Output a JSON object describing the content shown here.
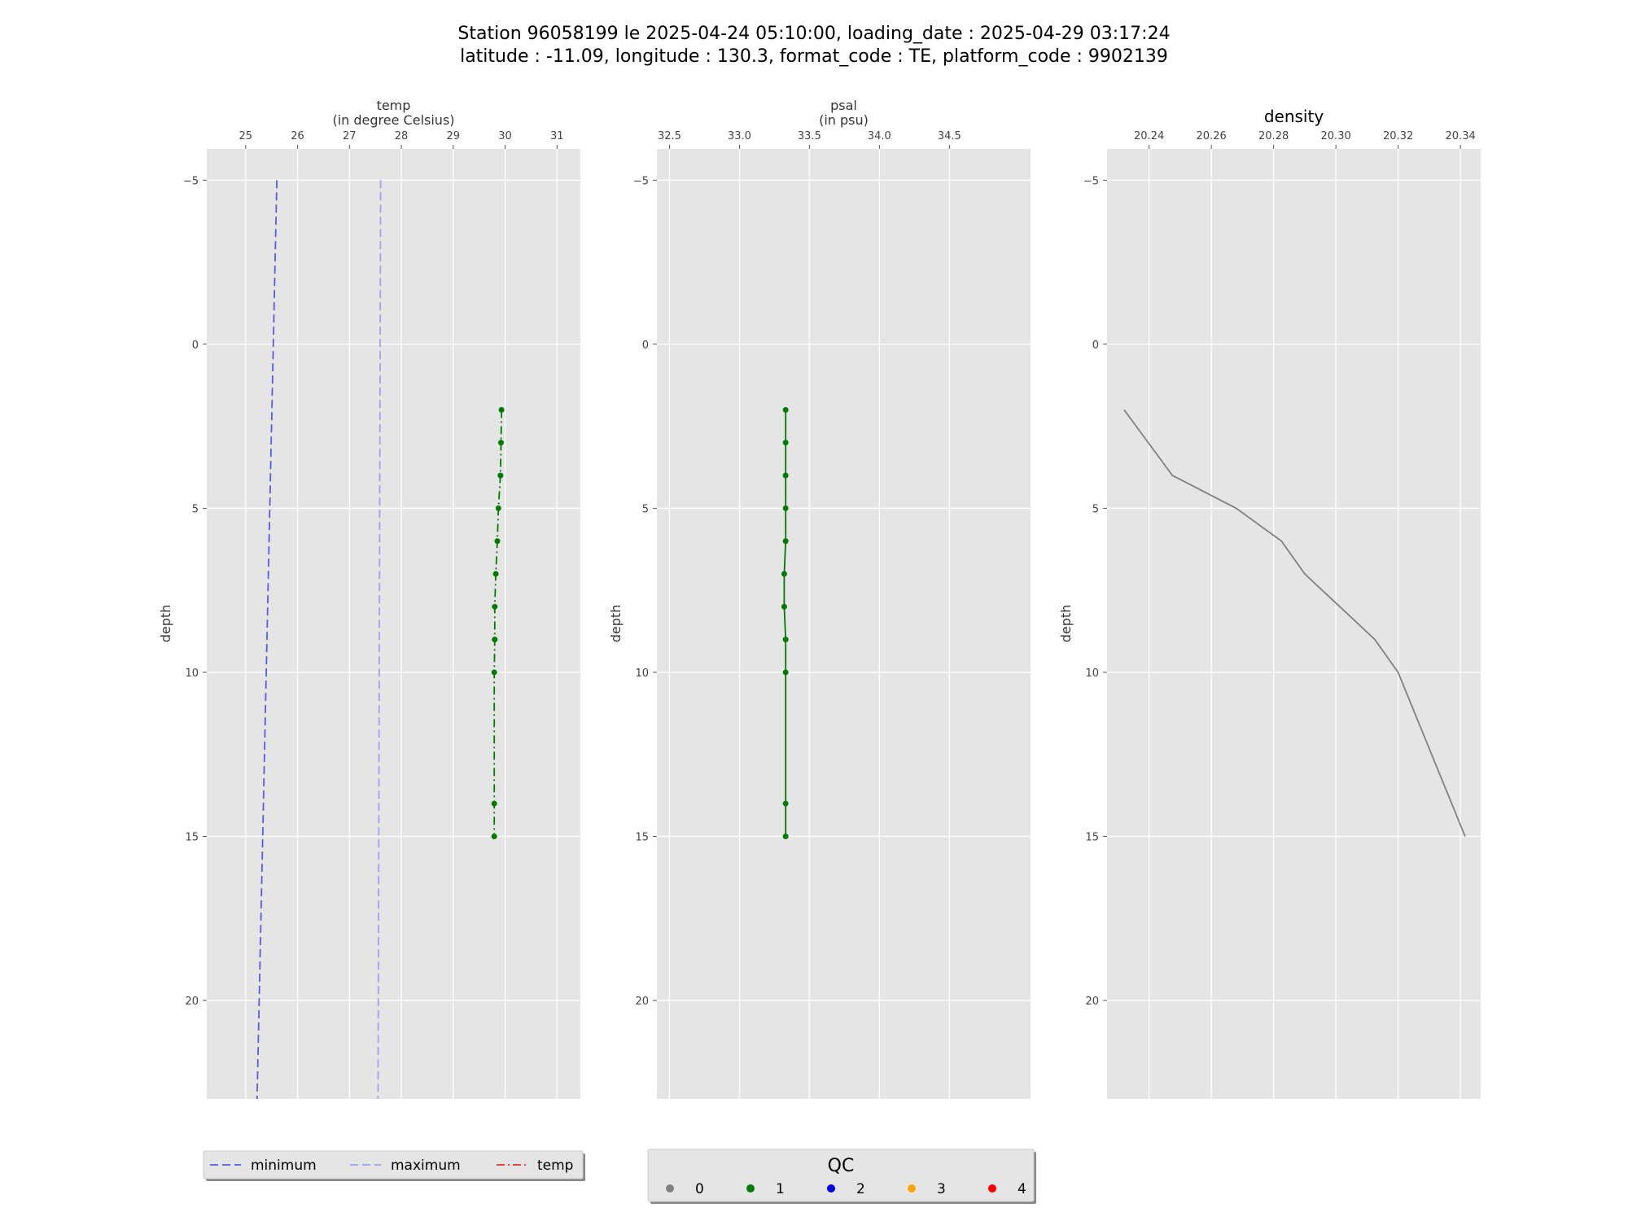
{
  "figure": {
    "title_line1": "Station 96058199 le 2025-04-24 05:10:00, loading_date : 2025-04-29 03:17:24",
    "title_line2": "latitude : -11.09, longitude : 130.3, format_code : TE, platform_code : 9902139"
  },
  "colors": {
    "panel_bg": "#e5e5e5",
    "grid": "#ffffff",
    "minimum": "#5a5ae6",
    "maximum": "#a0a0f0",
    "temp_legend": "#e03030",
    "qc_good": "#007a00",
    "density_line": "#808080"
  },
  "chart_data": [
    {
      "type": "line",
      "panel": "temp",
      "xlabel_line1": "temp",
      "xlabel_line2": "(in degree Celsius)",
      "ylabel": "depth",
      "xlim": [
        24.25,
        31.45
      ],
      "ylim": [
        23,
        -5.95
      ],
      "y_inverted": true,
      "xticks": [
        25,
        26,
        27,
        28,
        29,
        30,
        31
      ],
      "yticks": [
        -5,
        0,
        5,
        10,
        15,
        20
      ],
      "x_axis_position": "top",
      "grid": true,
      "series": [
        {
          "name": "minimum",
          "style": "dashed",
          "color": "#5a5ae6",
          "x": [
            25.6,
            25.22
          ],
          "y": [
            -5,
            23
          ]
        },
        {
          "name": "maximum",
          "style": "dashed",
          "color": "#a0a0f0",
          "x": [
            27.6,
            27.55
          ],
          "y": [
            -5,
            23
          ]
        },
        {
          "name": "temp",
          "style": "dashdot",
          "color": "#007a00",
          "qc": 1,
          "x": [
            29.93,
            29.92,
            29.91,
            29.87,
            29.85,
            29.82,
            29.8,
            29.8,
            29.79,
            29.79,
            29.79
          ],
          "y": [
            2,
            3,
            4,
            5,
            6,
            7,
            8,
            9,
            10,
            14,
            15
          ]
        }
      ]
    },
    {
      "type": "line",
      "panel": "psal",
      "xlabel_line1": "psal",
      "xlabel_line2": "(in psu)",
      "ylabel": "depth",
      "xlim": [
        32.41,
        35.08
      ],
      "ylim": [
        23,
        -5.95
      ],
      "y_inverted": true,
      "xticks": [
        32.5,
        33.0,
        33.5,
        34.0,
        34.5
      ],
      "xtick_labels": [
        "32.5",
        "33.0",
        "33.5",
        "34.0",
        "34.5"
      ],
      "yticks": [
        -5,
        0,
        5,
        10,
        15,
        20
      ],
      "x_axis_position": "top",
      "grid": true,
      "series": [
        {
          "name": "psal",
          "style": "solid",
          "color": "#007a00",
          "qc": 1,
          "x": [
            33.33,
            33.33,
            33.33,
            33.33,
            33.33,
            33.32,
            33.32,
            33.33,
            33.33,
            33.33,
            33.33
          ],
          "y": [
            2,
            3,
            4,
            5,
            6,
            7,
            8,
            9,
            10,
            14,
            15
          ]
        }
      ]
    },
    {
      "type": "line",
      "panel": "density",
      "title": "density",
      "ylabel": "depth",
      "xlim": [
        20.2265,
        20.3465
      ],
      "ylim": [
        23,
        -5.95
      ],
      "y_inverted": true,
      "xticks": [
        20.24,
        20.26,
        20.28,
        20.3,
        20.32,
        20.34
      ],
      "xtick_labels": [
        "20.24",
        "20.26",
        "20.28",
        "20.30",
        "20.32",
        "20.34"
      ],
      "yticks": [
        -5,
        0,
        5,
        10,
        15,
        20
      ],
      "x_axis_position": "top",
      "grid": true,
      "series": [
        {
          "name": "density",
          "style": "solid",
          "color": "#808080",
          "x": [
            20.232,
            20.2475,
            20.268,
            20.2825,
            20.29,
            20.3125,
            20.32,
            20.3415
          ],
          "y": [
            2,
            4,
            5,
            6,
            7,
            9,
            10,
            15
          ]
        }
      ]
    }
  ],
  "legend_lines": [
    {
      "label": "minimum",
      "color": "#5a5ae6",
      "style": "dashed"
    },
    {
      "label": "maximum",
      "color": "#a0a0f0",
      "style": "dashed"
    },
    {
      "label": "temp",
      "color": "#e03030",
      "style": "dashdot"
    }
  ],
  "legend_qc": {
    "title": "QC",
    "items": [
      {
        "label": "0",
        "color": "#808080"
      },
      {
        "label": "1",
        "color": "#007a00"
      },
      {
        "label": "2",
        "color": "#0000e6"
      },
      {
        "label": "3",
        "color": "#ffa500"
      },
      {
        "label": "4",
        "color": "#ff0000"
      }
    ]
  }
}
